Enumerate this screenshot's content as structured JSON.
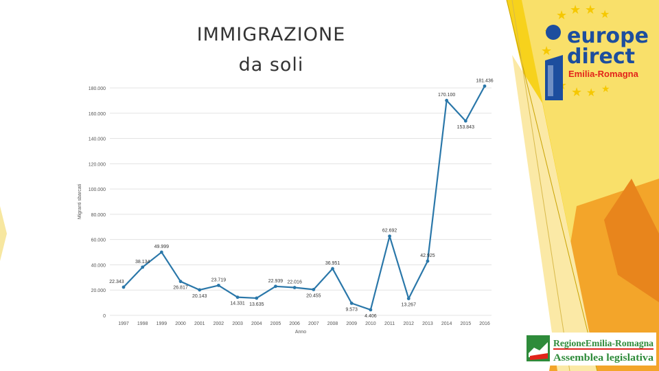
{
  "slide": {
    "title_line1": "IMMIGRAZIONE",
    "title_line2": "da soli"
  },
  "logos": {
    "europe_direct": {
      "word1": "europe",
      "word2": "direct",
      "region": "Emilia-Romagna"
    },
    "regione": {
      "line1": "RegioneEmilia-Romagna",
      "line2": "Assemblea legislativa"
    }
  },
  "colors": {
    "line": "#2a77a9",
    "grid": "#e3e3e3",
    "accent_yellow": "#f6c800",
    "accent_orange": "#f39a1e",
    "brand_blue": "#1d4e9e",
    "brand_red": "#e2231a",
    "brand_green": "#2e8b3a"
  },
  "chart_data": {
    "type": "line",
    "xlabel": "Anno",
    "ylabel": "Migranti sbarcati",
    "x": [
      "1997",
      "1998",
      "1999",
      "2000",
      "2001",
      "2002",
      "2003",
      "2004",
      "2005",
      "2006",
      "2007",
      "2008",
      "2009",
      "2010",
      "2011",
      "2012",
      "2013",
      "2014",
      "2015",
      "2016"
    ],
    "values": [
      22343,
      38134,
      49999,
      26817,
      20143,
      23719,
      14331,
      13635,
      22939,
      22016,
      20455,
      36951,
      9573,
      4406,
      62692,
      13267,
      42925,
      170100,
      153843,
      181436
    ],
    "value_labels": [
      "22.343",
      "38.134",
      "49.999",
      "26.817",
      "20.143",
      "23.719",
      "14.331",
      "13.635",
      "22.939",
      "22.016",
      "20.455",
      "36.951",
      "9.573",
      "4.406",
      "62.692",
      "13.267",
      "42.925",
      "170.100",
      "153.843",
      "181.436"
    ],
    "ylim": [
      0,
      180000
    ],
    "yticks": [
      0,
      20000,
      40000,
      60000,
      80000,
      100000,
      120000,
      140000,
      160000,
      180000
    ],
    "ytick_labels": [
      "0",
      "20.000",
      "40.000",
      "60.000",
      "80.000",
      "100.000",
      "120.000",
      "140.000",
      "160.000",
      "180.000"
    ],
    "grid": true,
    "legend": "none"
  }
}
